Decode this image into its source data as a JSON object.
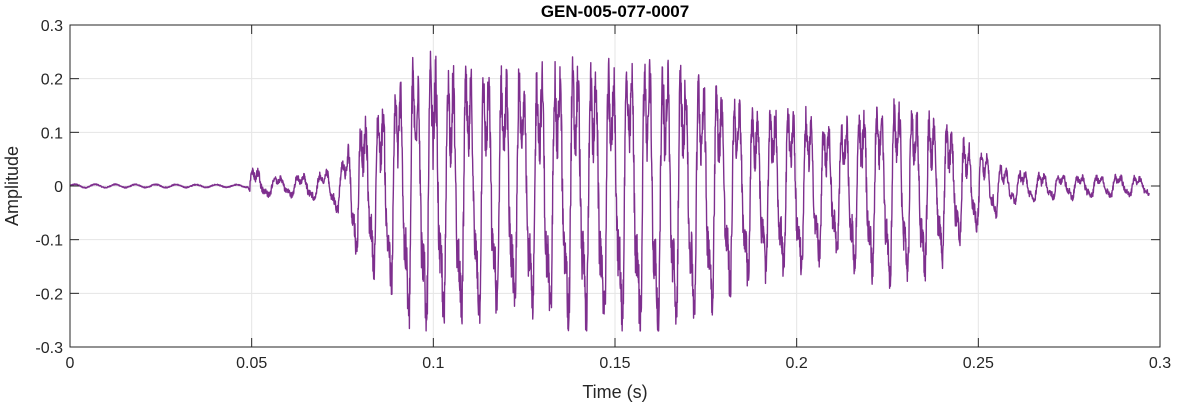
{
  "chart_data": {
    "type": "line",
    "title": "GEN-005-077-0007",
    "xlabel": "Time (s)",
    "ylabel": "Amplitude",
    "xlim": [
      0,
      0.3
    ],
    "ylim": [
      -0.3,
      0.3
    ],
    "xticks": [
      0,
      0.05,
      0.1,
      0.15,
      0.2,
      0.25,
      0.3
    ],
    "xtick_labels": [
      "0",
      "0.05",
      "0.1",
      "0.15",
      "0.2",
      "0.25",
      "0.3"
    ],
    "yticks": [
      -0.3,
      -0.2,
      -0.1,
      0,
      0.1,
      0.2,
      0.3
    ],
    "ytick_labels": [
      "-0.3",
      "-0.2",
      "-0.1",
      "0",
      "0.1",
      "0.2",
      "0.3"
    ],
    "grid": true,
    "line_color": "#7E2F8E",
    "grid_color": "#E5E5E5",
    "axis_color": "#262626",
    "signal_duration": 0.297,
    "envelope": [
      {
        "t": 0.0,
        "a": 0.004
      },
      {
        "t": 0.049,
        "a": 0.003
      },
      {
        "t": 0.0505,
        "a": 0.055
      },
      {
        "t": 0.053,
        "a": 0.02
      },
      {
        "t": 0.06,
        "a": 0.018
      },
      {
        "t": 0.07,
        "a": 0.03
      },
      {
        "t": 0.0755,
        "a": 0.06
      },
      {
        "t": 0.078,
        "a": 0.125
      },
      {
        "t": 0.085,
        "a": 0.17
      },
      {
        "t": 0.09,
        "a": 0.22
      },
      {
        "t": 0.094,
        "a": 0.275
      },
      {
        "t": 0.1,
        "a": 0.275
      },
      {
        "t": 0.11,
        "a": 0.25
      },
      {
        "t": 0.12,
        "a": 0.25
      },
      {
        "t": 0.13,
        "a": 0.26
      },
      {
        "t": 0.14,
        "a": 0.27
      },
      {
        "t": 0.15,
        "a": 0.26
      },
      {
        "t": 0.16,
        "a": 0.28
      },
      {
        "t": 0.17,
        "a": 0.26
      },
      {
        "t": 0.18,
        "a": 0.21
      },
      {
        "t": 0.19,
        "a": 0.17
      },
      {
        "t": 0.2,
        "a": 0.17
      },
      {
        "t": 0.21,
        "a": 0.13
      },
      {
        "t": 0.215,
        "a": 0.16
      },
      {
        "t": 0.225,
        "a": 0.18
      },
      {
        "t": 0.235,
        "a": 0.17
      },
      {
        "t": 0.24,
        "a": 0.14
      },
      {
        "t": 0.25,
        "a": 0.08
      },
      {
        "t": 0.26,
        "a": 0.03
      },
      {
        "t": 0.28,
        "a": 0.022
      },
      {
        "t": 0.297,
        "a": 0.018
      }
    ]
  }
}
